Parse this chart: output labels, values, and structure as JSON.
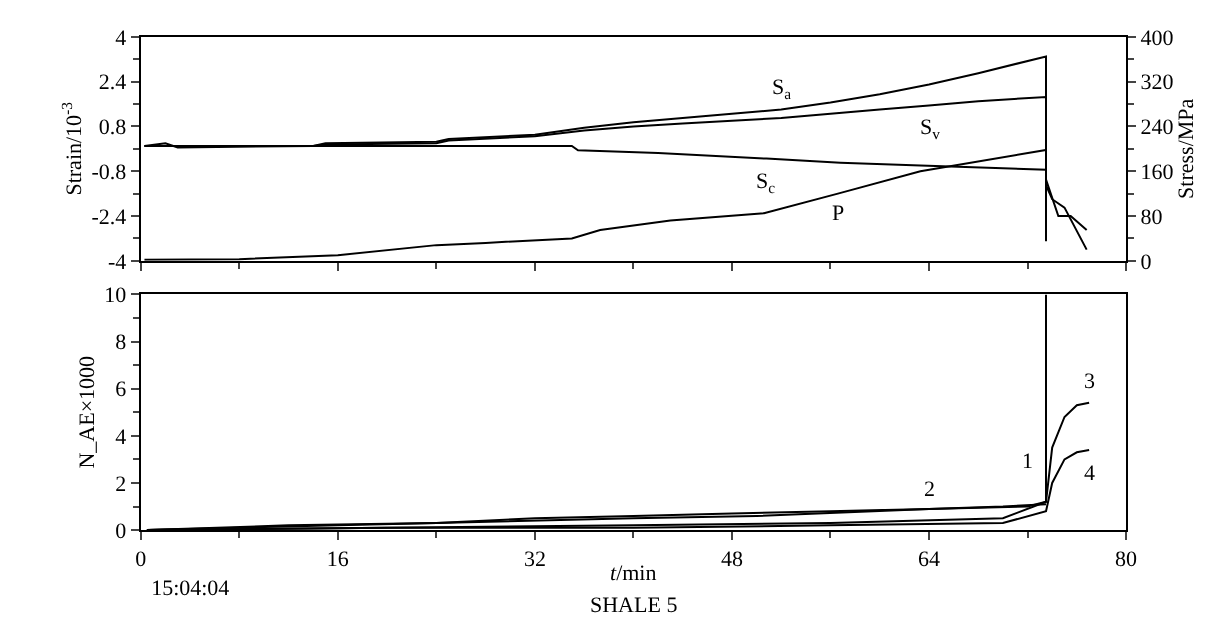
{
  "chart_data": [
    {
      "type": "line",
      "ylabel": "Strain/10$^{-3}$",
      "y2label": "Stress/MPa",
      "xlim": [
        0,
        80
      ],
      "xticks": [
        0,
        16,
        32,
        48,
        64,
        80
      ],
      "ylim": [
        -4,
        4
      ],
      "yticks": [
        -4,
        -2.4,
        -0.8,
        0.8,
        2.4,
        4
      ],
      "y2lim": [
        0,
        400
      ],
      "y2ticks": [
        0,
        80,
        160,
        240,
        320,
        400
      ],
      "tick_labels": "y",
      "series": [
        {
          "name": "S$_{a}$",
          "color": "#000000",
          "x": [
            0.3,
            2,
            3,
            14,
            15,
            24,
            25,
            32,
            36,
            40,
            44,
            48,
            52,
            56,
            60,
            64,
            68,
            73.5,
            73.5,
            74.5,
            75.5,
            76.8
          ],
          "values": [
            0.1,
            0.2,
            0.05,
            0.1,
            0.2,
            0.25,
            0.35,
            0.5,
            0.75,
            0.95,
            1.1,
            1.25,
            1.4,
            1.65,
            1.95,
            2.3,
            2.7,
            3.3,
            -1.1,
            -2.4,
            -2.4,
            -2.9
          ]
        },
        {
          "name": "S$_{v}$",
          "color": "#000000",
          "x": [
            0.3,
            14,
            15,
            24,
            25,
            32,
            36,
            40,
            44,
            48,
            52,
            56,
            60,
            64,
            68,
            73.5,
            73.5,
            74,
            75,
            76.8
          ],
          "values": [
            0.1,
            0.1,
            0.15,
            0.2,
            0.3,
            0.45,
            0.65,
            0.8,
            0.9,
            1.0,
            1.1,
            1.25,
            1.4,
            1.55,
            1.7,
            1.85,
            -1.3,
            -1.8,
            -2.1,
            -3.6
          ]
        },
        {
          "name": "S$_{c}$",
          "color": "#000000",
          "x": [
            0.3,
            35,
            35.5,
            42,
            50.8,
            56.8,
            63.3,
            73.5,
            73.5
          ],
          "values": [
            0.1,
            0.1,
            -0.05,
            -0.15,
            -0.35,
            -0.5,
            -0.6,
            -0.75,
            -3.3
          ]
        },
        {
          "name": "P",
          "color": "#000000",
          "axis": "y2",
          "x": [
            0.3,
            8,
            16,
            24,
            28,
            35,
            37.3,
            43,
            50.6,
            56.6,
            63.3,
            73.5,
            73.5
          ],
          "values": [
            2,
            3,
            10,
            28,
            32,
            40,
            55,
            72,
            85,
            120,
            160,
            198,
            36
          ]
        }
      ]
    },
    {
      "type": "line",
      "xlabel": "t/min",
      "xlim": [
        0,
        80
      ],
      "xticks": [
        {
          "value": 0,
          "label": "0\n15:04:04"
        },
        16,
        32,
        48,
        64,
        80
      ],
      "ylabel": "N_AE×1000",
      "ylim": [
        0,
        10
      ],
      "yticks": [
        0,
        2,
        4,
        6,
        8,
        10
      ],
      "annotations": [
        "SHALE 5"
      ],
      "series": [
        {
          "name": "1",
          "color": "#000000",
          "x": [
            0.5,
            8,
            16,
            24,
            32,
            40,
            48,
            56,
            64,
            72,
            73.5,
            73.5
          ],
          "values": [
            0,
            0.1,
            0.2,
            0.3,
            0.5,
            0.6,
            0.7,
            0.8,
            0.9,
            1.0,
            1.2,
            10
          ]
        },
        {
          "name": "2",
          "color": "#000000",
          "x": [
            0.5,
            12,
            24,
            40,
            50,
            64,
            70,
            73.5
          ],
          "values": [
            0,
            0.2,
            0.3,
            0.5,
            0.6,
            0.9,
            1.0,
            1.1
          ]
        },
        {
          "name": "3",
          "color": "#000000",
          "x": [
            0.5,
            20,
            40,
            56,
            70,
            73.5,
            74,
            75,
            76,
            77
          ],
          "values": [
            0,
            0.1,
            0.2,
            0.3,
            0.5,
            1.2,
            3.5,
            4.8,
            5.3,
            5.4
          ]
        },
        {
          "name": "4",
          "color": "#000000",
          "x": [
            0.5,
            20,
            40,
            56,
            70,
            73.5,
            74,
            75,
            76,
            77
          ],
          "values": [
            0,
            0.1,
            0.1,
            0.2,
            0.3,
            0.8,
            2.0,
            3.0,
            3.3,
            3.4
          ]
        }
      ]
    }
  ]
}
